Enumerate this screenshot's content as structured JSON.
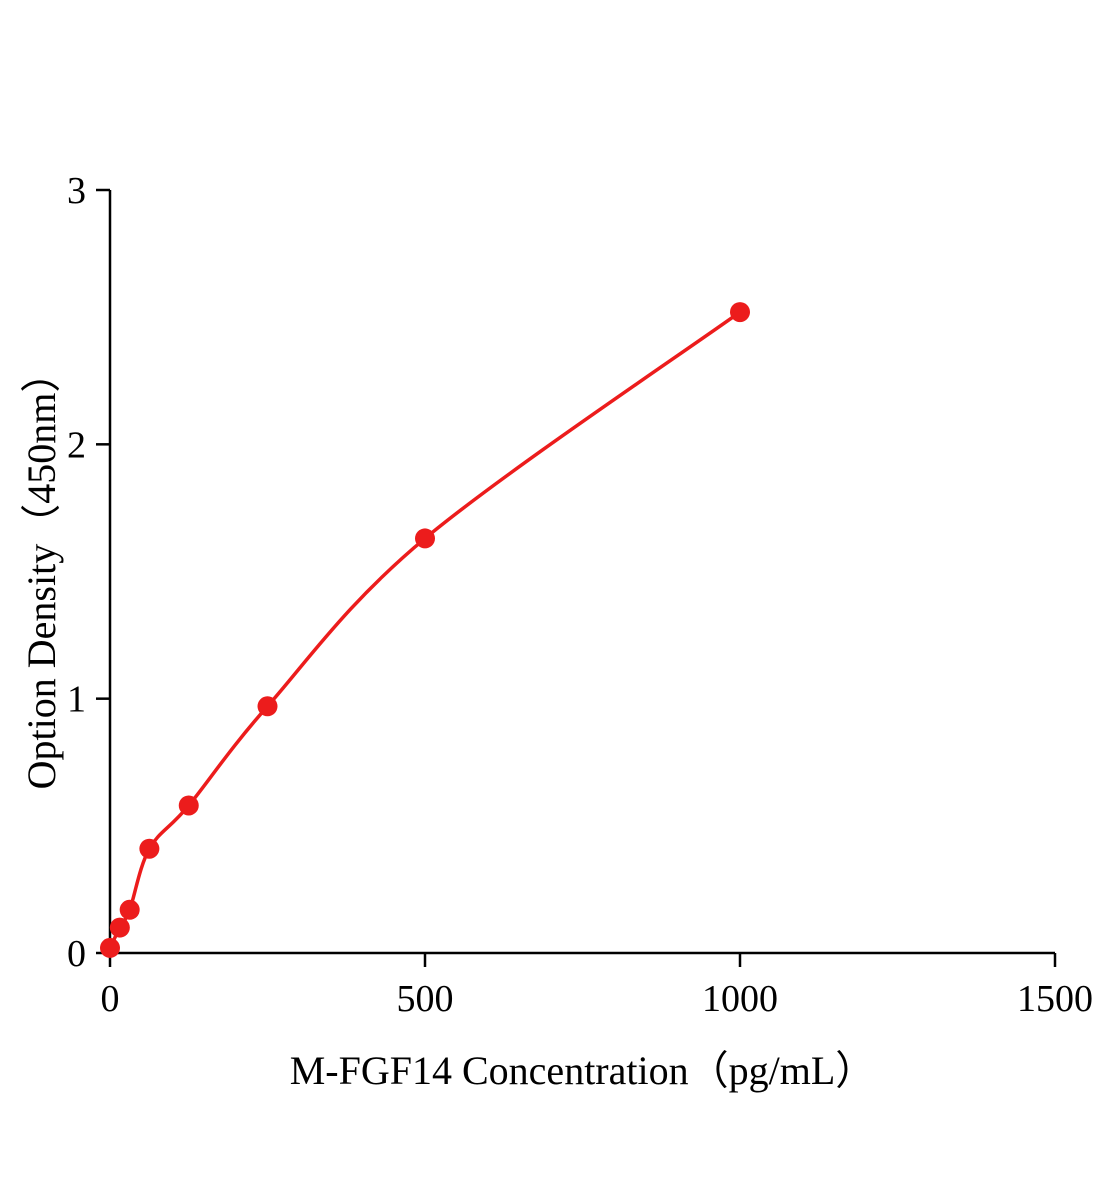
{
  "chart_data": {
    "type": "scatter",
    "title": "",
    "xlabel": "M-FGF14 Concentration（pg/mL）",
    "ylabel": "Option Density（450nm）",
    "x": [
      0,
      15.6,
      31.25,
      62.5,
      125,
      250,
      500,
      1000
    ],
    "y": [
      0.02,
      0.1,
      0.17,
      0.41,
      0.58,
      0.97,
      1.63,
      2.52
    ],
    "xlim": [
      0,
      1500
    ],
    "ylim": [
      0,
      3
    ],
    "x_ticks": [
      0,
      500,
      1000,
      1500
    ],
    "y_ticks": [
      0,
      1,
      2,
      3
    ],
    "line_color": "#ec1c1c",
    "marker_color": "#ec1c1c",
    "axis_color": "#000000",
    "grid": "off",
    "legend": "none"
  }
}
